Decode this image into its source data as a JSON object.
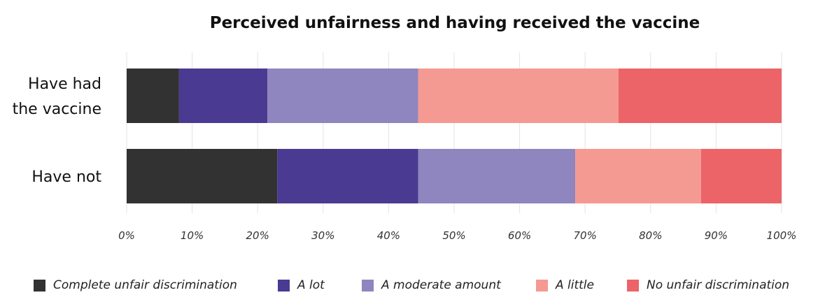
{
  "chart_data": {
    "type": "bar",
    "orientation": "horizontal",
    "stacked": true,
    "title": "Perceived unfairness and having received the vaccine",
    "categories": [
      [
        "Have had",
        "the vaccine"
      ],
      [
        "Have not"
      ]
    ],
    "series": [
      {
        "name": "Complete unfair discrimination",
        "color": "#323232",
        "values": [
          8.0,
          23.0
        ]
      },
      {
        "name": "A lot",
        "color": "#4b3a92",
        "values": [
          13.5,
          21.5
        ]
      },
      {
        "name": "A moderate amount",
        "color": "#8f85bf",
        "values": [
          23.0,
          24.0
        ]
      },
      {
        "name": "A little",
        "color": "#f49a92",
        "values": [
          30.6,
          19.2
        ]
      },
      {
        "name": "No unfair discrimination",
        "color": "#ec6468",
        "values": [
          24.9,
          12.3
        ]
      }
    ],
    "xlim": [
      0,
      100
    ],
    "xticks": [
      "0%",
      "10%",
      "20%",
      "30%",
      "40%",
      "50%",
      "60%",
      "70%",
      "80%",
      "90%",
      "100%"
    ],
    "grid": true,
    "legend_position": "bottom"
  }
}
